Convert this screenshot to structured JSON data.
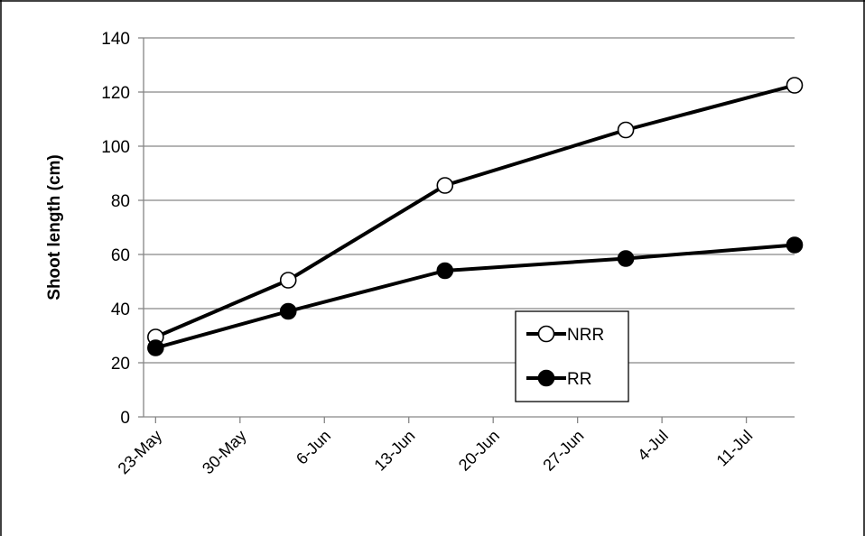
{
  "chart_data": {
    "type": "line",
    "title": "",
    "xlabel": "",
    "ylabel": "Shoot length (cm)",
    "x_tick_labels": [
      "23-May",
      "30-May",
      "6-Jun",
      "13-Jun",
      "20-Jun",
      "27-Jun",
      "4-Jul",
      "11-Jul"
    ],
    "x_tick_dates": [
      "2013-05-23",
      "2013-05-30",
      "2013-06-06",
      "2013-06-13",
      "2013-06-20",
      "2013-06-27",
      "2013-07-04",
      "2013-07-11"
    ],
    "xlim": [
      "2013-05-22",
      "2013-07-15"
    ],
    "y_ticks": [
      0,
      20,
      40,
      60,
      80,
      100,
      120,
      140
    ],
    "ylim": [
      0,
      140
    ],
    "grid": "horizontal",
    "legend_position": "bottom-right",
    "x": [
      "2013-05-23",
      "2013-06-03",
      "2013-06-16",
      "2013-07-01",
      "2013-07-15"
    ],
    "series": [
      {
        "name": "NRR",
        "marker": "open-circle",
        "values": [
          29.5,
          50.5,
          85.5,
          106,
          122.5
        ]
      },
      {
        "name": "RR",
        "marker": "filled-circle",
        "values": [
          25.5,
          39,
          54,
          58.5,
          63.5
        ]
      }
    ],
    "colors": {
      "line": "#000000",
      "grid": "#868686",
      "open_marker_fill": "#ffffff",
      "filled_marker_fill": "#000000"
    }
  }
}
